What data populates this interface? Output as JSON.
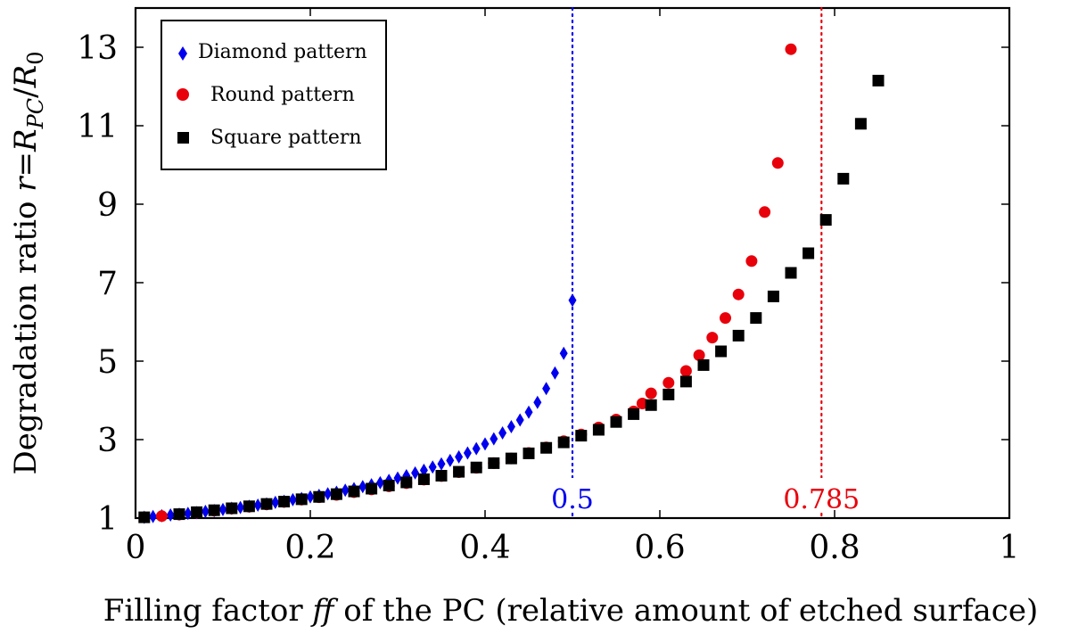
{
  "chart_data": {
    "type": "scatter",
    "xlabel": "Filling factor ff of the PC (relative amount of etched surface)",
    "ylabel": "Degradation ratio r=R_PC/R_0",
    "xlim": [
      0,
      1
    ],
    "ylim": [
      1,
      14
    ],
    "xticks": [
      0,
      0.2,
      0.4,
      0.6,
      0.8,
      1
    ],
    "xtick_labels": [
      "0",
      "0.2",
      "0.4",
      "0.6",
      "0.8",
      "1"
    ],
    "yticks": [
      1,
      3,
      5,
      7,
      9,
      11,
      13
    ],
    "ytick_labels": [
      "1",
      "3",
      "5",
      "7",
      "9",
      "11",
      "13"
    ],
    "legend_position": "top-left",
    "series": [
      {
        "name": "Diamond pattern",
        "marker": "diamond",
        "color": "#0000ee",
        "x": [
          0.01,
          0.02,
          0.03,
          0.04,
          0.05,
          0.06,
          0.07,
          0.08,
          0.09,
          0.1,
          0.11,
          0.12,
          0.13,
          0.14,
          0.15,
          0.16,
          0.17,
          0.18,
          0.19,
          0.2,
          0.21,
          0.22,
          0.23,
          0.24,
          0.25,
          0.26,
          0.27,
          0.28,
          0.29,
          0.3,
          0.31,
          0.32,
          0.33,
          0.34,
          0.35,
          0.36,
          0.37,
          0.38,
          0.39,
          0.4,
          0.41,
          0.42,
          0.43,
          0.44,
          0.45,
          0.46,
          0.47,
          0.48,
          0.49,
          0.5
        ],
        "y": [
          1.02,
          1.04,
          1.06,
          1.08,
          1.1,
          1.12,
          1.14,
          1.17,
          1.19,
          1.22,
          1.25,
          1.27,
          1.3,
          1.33,
          1.36,
          1.4,
          1.43,
          1.47,
          1.5,
          1.54,
          1.58,
          1.62,
          1.66,
          1.71,
          1.75,
          1.8,
          1.85,
          1.9,
          1.96,
          2.02,
          2.08,
          2.15,
          2.22,
          2.3,
          2.38,
          2.47,
          2.56,
          2.66,
          2.77,
          2.89,
          3.02,
          3.17,
          3.33,
          3.5,
          3.7,
          3.95,
          4.3,
          4.7,
          5.2,
          6.55
        ]
      },
      {
        "name": "Round pattern",
        "marker": "circle",
        "color": "#e8000b",
        "x": [
          0.01,
          0.03,
          0.05,
          0.07,
          0.09,
          0.11,
          0.13,
          0.15,
          0.17,
          0.19,
          0.21,
          0.23,
          0.25,
          0.27,
          0.29,
          0.31,
          0.33,
          0.35,
          0.37,
          0.39,
          0.41,
          0.43,
          0.45,
          0.47,
          0.49,
          0.51,
          0.53,
          0.55,
          0.57,
          0.58,
          0.59,
          0.61,
          0.63,
          0.645,
          0.66,
          0.675,
          0.69,
          0.705,
          0.72,
          0.735,
          0.75
        ],
        "y": [
          1.02,
          1.05,
          1.09,
          1.14,
          1.19,
          1.24,
          1.29,
          1.35,
          1.41,
          1.47,
          1.53,
          1.59,
          1.66,
          1.73,
          1.81,
          1.89,
          1.98,
          2.07,
          2.17,
          2.28,
          2.4,
          2.52,
          2.66,
          2.8,
          2.96,
          3.13,
          3.31,
          3.51,
          3.72,
          3.92,
          4.18,
          4.45,
          4.75,
          5.15,
          5.6,
          6.1,
          6.7,
          7.55,
          8.8,
          10.05,
          12.95
        ]
      },
      {
        "name": "Square pattern",
        "marker": "square",
        "color": "#000000",
        "x": [
          0.01,
          0.05,
          0.07,
          0.09,
          0.11,
          0.13,
          0.15,
          0.17,
          0.19,
          0.21,
          0.23,
          0.25,
          0.27,
          0.29,
          0.31,
          0.33,
          0.35,
          0.37,
          0.39,
          0.41,
          0.43,
          0.45,
          0.47,
          0.49,
          0.51,
          0.53,
          0.55,
          0.57,
          0.59,
          0.61,
          0.63,
          0.65,
          0.67,
          0.69,
          0.71,
          0.73,
          0.75,
          0.77,
          0.79,
          0.81,
          0.83,
          0.85
        ],
        "y": [
          1.02,
          1.1,
          1.15,
          1.2,
          1.25,
          1.3,
          1.36,
          1.42,
          1.48,
          1.54,
          1.61,
          1.68,
          1.75,
          1.83,
          1.91,
          1.99,
          2.08,
          2.18,
          2.29,
          2.4,
          2.52,
          2.65,
          2.79,
          2.93,
          3.1,
          3.25,
          3.45,
          3.65,
          3.88,
          4.15,
          4.48,
          4.9,
          5.25,
          5.65,
          6.1,
          6.65,
          7.25,
          7.75,
          8.6,
          9.65,
          11.05,
          12.15
        ]
      }
    ],
    "reference_lines": [
      {
        "x": 0.5,
        "label": "0.5",
        "color": "#0000ee"
      },
      {
        "x": 0.785,
        "label": "0.785",
        "color": "#e8000b"
      }
    ]
  },
  "text": {
    "ylabel_prefix": "Degradation ratio ",
    "ylabel_r": "r",
    "ylabel_eq": "=",
    "ylabel_R": "R",
    "ylabel_sub": "PC",
    "ylabel_slash": "/",
    "ylabel_sub0": "0",
    "xlabel_prefix": "Filling factor ",
    "xlabel_ff": "ff",
    "xlabel_suffix": " of the PC (relative amount of etched surface)"
  }
}
